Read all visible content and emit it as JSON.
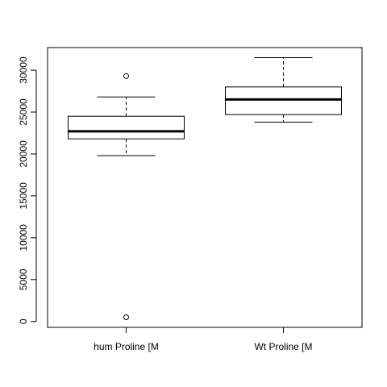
{
  "chart_data": {
    "type": "boxplot",
    "title": "",
    "xlabel": "",
    "ylabel": "",
    "ylim": [
      -700,
      32700
    ],
    "yticks": [
      0,
      5000,
      10000,
      15000,
      20000,
      25000,
      30000
    ],
    "ytick_labels": [
      "0",
      "5000",
      "10000",
      "15000",
      "20000",
      "25000",
      "30000"
    ],
    "categories": [
      "hum Proline [M",
      "Wt Proline [M"
    ],
    "boxes": [
      {
        "label": "hum Proline [M",
        "whisker_low": 19800,
        "q1": 21800,
        "median": 22700,
        "q3": 24500,
        "whisker_high": 26800,
        "outliers": [
          29300,
          500
        ]
      },
      {
        "label": "Wt Proline [M",
        "whisker_low": 23800,
        "q1": 24700,
        "median": 26500,
        "q3": 28000,
        "whisker_high": 31500,
        "outliers": []
      }
    ],
    "grid": false,
    "legend": "none"
  }
}
